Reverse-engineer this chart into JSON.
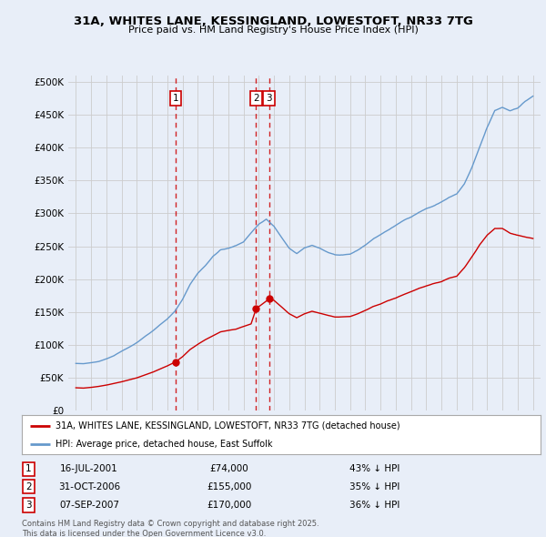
{
  "title": "31A, WHITES LANE, KESSINGLAND, LOWESTOFT, NR33 7TG",
  "subtitle": "Price paid vs. HM Land Registry's House Price Index (HPI)",
  "legend_property": "31A, WHITES LANE, KESSINGLAND, LOWESTOFT, NR33 7TG (detached house)",
  "legend_hpi": "HPI: Average price, detached house, East Suffolk",
  "footnote": "Contains HM Land Registry data © Crown copyright and database right 2025.\nThis data is licensed under the Open Government Licence v3.0.",
  "sales": [
    {
      "num": 1,
      "date": "16-JUL-2001",
      "price": 74000,
      "year": 2001.54,
      "label": "43% ↓ HPI"
    },
    {
      "num": 2,
      "date": "31-OCT-2006",
      "price": 155000,
      "year": 2006.83,
      "label": "35% ↓ HPI"
    },
    {
      "num": 3,
      "date": "07-SEP-2007",
      "price": 170000,
      "year": 2007.68,
      "label": "36% ↓ HPI"
    }
  ],
  "property_color": "#cc0000",
  "hpi_color": "#6699cc",
  "dashed_color": "#cc0000",
  "background_color": "#e8eef8",
  "plot_bg": "#e8eef8",
  "grid_color": "#cccccc",
  "xlim": [
    1994.5,
    2025.5
  ],
  "ylim": [
    0,
    510000
  ],
  "yticks": [
    0,
    50000,
    100000,
    150000,
    200000,
    250000,
    300000,
    350000,
    400000,
    450000,
    500000
  ],
  "ytick_labels": [
    "£0",
    "£50K",
    "£100K",
    "£150K",
    "£200K",
    "£250K",
    "£300K",
    "£350K",
    "£400K",
    "£450K",
    "£500K"
  ]
}
